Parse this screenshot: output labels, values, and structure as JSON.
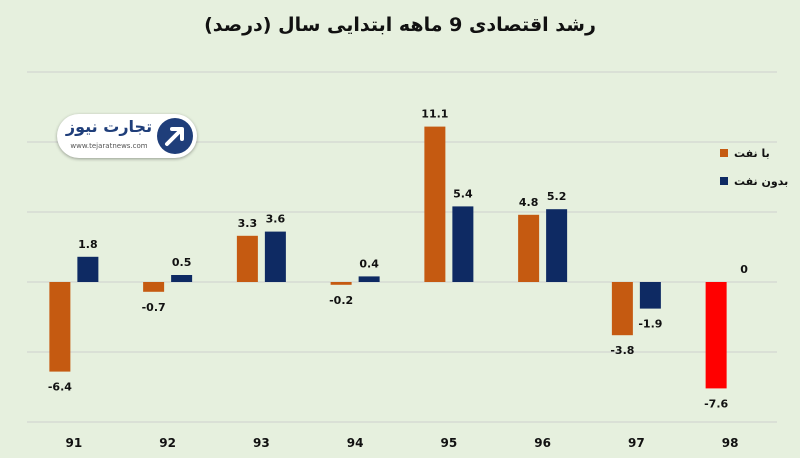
{
  "chart_data": {
    "type": "bar",
    "title": "رشد اقتصادی 9 ماهه ابتدایی سال (درصد)",
    "xlabel": "",
    "ylabel": "",
    "categories": [
      "91",
      "92",
      "93",
      "94",
      "95",
      "96",
      "97",
      "98"
    ],
    "series": [
      {
        "name": "با نفت",
        "values": [
          -6.4,
          -0.7,
          3.3,
          -0.2,
          11.1,
          4.8,
          -3.8,
          -7.6
        ],
        "labels": [
          "-6.4",
          "-0.7",
          "3.3",
          "-0.2",
          "11.1",
          "4.8",
          "-3.8",
          "-7.6"
        ]
      },
      {
        "name": "بدون نفت",
        "values": [
          1.8,
          0.5,
          3.6,
          0.4,
          5.4,
          5.2,
          -1.9,
          0
        ],
        "labels": [
          "1.8",
          "0.5",
          "3.6",
          "0.4",
          "5.4",
          "5.2",
          "-1.9",
          "0"
        ]
      }
    ],
    "ylim": [
      -10,
      15
    ],
    "grid": true,
    "legend_position": "right",
    "colors": {
      "with_oil": "#c55a11",
      "without_oil": "#0e2a63",
      "highlight": "#ff0000",
      "grid": "#cfcfcf",
      "background": "#e6f0de"
    },
    "highlight": {
      "series": 0,
      "index": 7
    }
  },
  "logo": {
    "name": "تجارت نیوز",
    "url": "www.tejaratnews.com",
    "icon": "arrow-up-right-icon"
  }
}
